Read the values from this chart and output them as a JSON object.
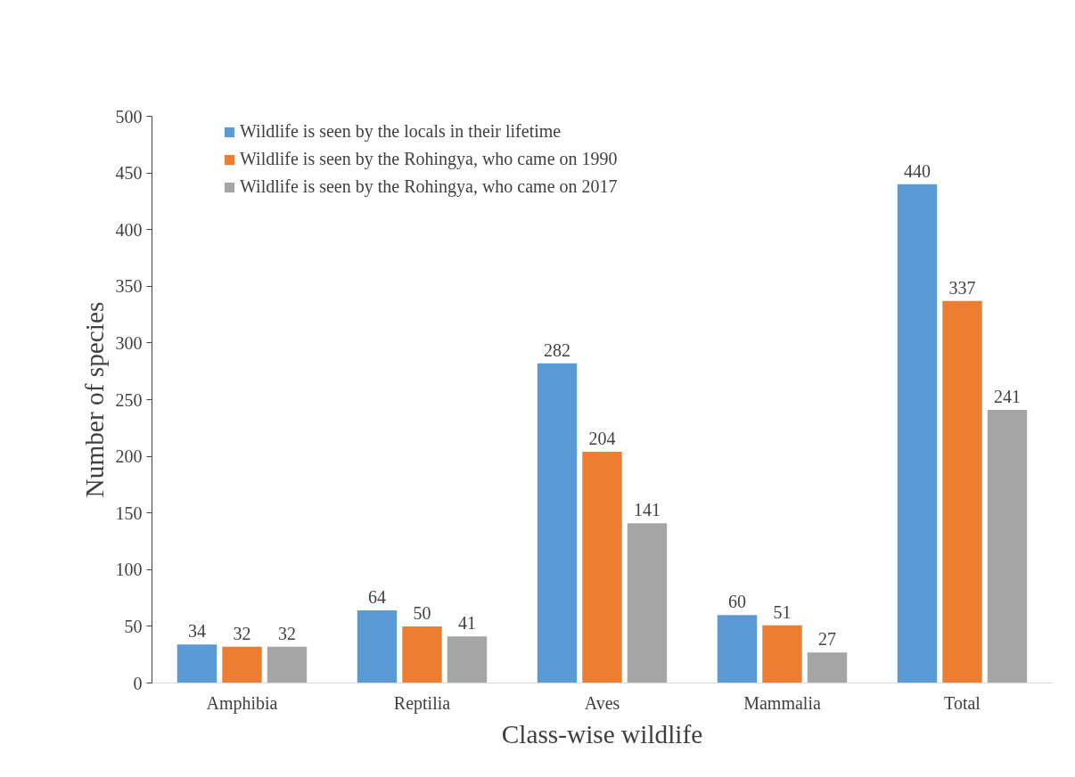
{
  "chart_data": {
    "type": "bar",
    "xlabel": "Class-wise wildlife",
    "ylabel": "Number of species",
    "categories": [
      "Amphibia",
      "Reptilia",
      "Aves",
      "Mammalia",
      "Total"
    ],
    "series": [
      {
        "name": "Wildlife is seen by the locals in their lifetime",
        "color": "#5b9bd5",
        "values": [
          34,
          64,
          282,
          60,
          440
        ]
      },
      {
        "name": "Wildlife is seen by the Rohingya, who came on 1990",
        "color": "#ed7d31",
        "values": [
          32,
          50,
          204,
          51,
          337
        ]
      },
      {
        "name": "Wildlife is seen by the Rohingya, who came on 2017",
        "color": "#a5a5a5",
        "values": [
          32,
          41,
          141,
          27,
          241
        ]
      }
    ],
    "ylim": [
      0,
      500
    ],
    "yticks": [
      0,
      50,
      100,
      150,
      200,
      250,
      300,
      350,
      400,
      450,
      500
    ],
    "data_labels": true,
    "grid": false,
    "legend": "top left"
  }
}
